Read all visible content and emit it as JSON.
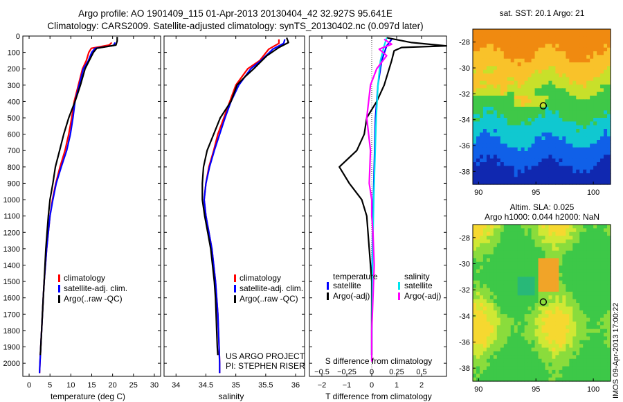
{
  "header": {
    "line1": "Argo profile: AO 1901409_115 01-Apr-2013 20130404_42 32.927S 95.641E",
    "line2": "Climatology: CARS2009. Satellite-adjusted climatology: synTS_20130402.nc (0.097d later)"
  },
  "credit": {
    "line1": "US ARGO PROJECT",
    "line2": "PI: STEPHEN RISER"
  },
  "watermark": "IMOS 09-Apr-2013 17:00:22",
  "colors": {
    "climatology": "#ff0000",
    "satellite": "#0000ff",
    "argo": "#000000",
    "salinity_sat": "#00e5ee",
    "salinity_argo": "#ff00ff"
  },
  "chart_data": [
    {
      "type": "line",
      "name": "temperature",
      "xlabel": "temperature (deg C)",
      "xlim": [
        -1.5,
        31.5
      ],
      "ylim": [
        0,
        2080
      ],
      "xticks": [
        0,
        5,
        10,
        15,
        20,
        25,
        30
      ],
      "yticks": [
        0,
        100,
        200,
        300,
        400,
        500,
        600,
        700,
        800,
        900,
        1000,
        1100,
        1200,
        1300,
        1400,
        1500,
        1600,
        1700,
        1800,
        1900,
        2000
      ],
      "legend": [
        "climatology",
        "satellite-adj. clim.",
        "Argo(..raw -QC)"
      ],
      "series": [
        {
          "name": "climatology",
          "color": "#ff0000",
          "points": [
            [
              19.8,
              40
            ],
            [
              19.2,
              55
            ],
            [
              14.9,
              75
            ],
            [
              14.3,
              100
            ],
            [
              13.7,
              150
            ],
            [
              12.8,
              200
            ],
            [
              11.8,
              300
            ],
            [
              10.8,
              400
            ],
            [
              10.2,
              500
            ],
            [
              9.5,
              600
            ],
            [
              8.6,
              700
            ],
            [
              7.4,
              800
            ],
            [
              6.4,
              900
            ],
            [
              5.6,
              1000
            ],
            [
              5.0,
              1100
            ],
            [
              4.6,
              1200
            ],
            [
              4.2,
              1300
            ],
            [
              3.9,
              1400
            ],
            [
              3.6,
              1500
            ],
            [
              3.4,
              1600
            ],
            [
              3.2,
              1700
            ],
            [
              3.0,
              1800
            ],
            [
              2.8,
              1900
            ],
            [
              2.6,
              2000
            ],
            [
              2.5,
              2060
            ]
          ]
        },
        {
          "name": "satellite-adj. clim.",
          "color": "#0000ff",
          "points": [
            [
              20.6,
              40
            ],
            [
              20.2,
              58
            ],
            [
              15.8,
              75
            ],
            [
              15.0,
              100
            ],
            [
              14.2,
              150
            ],
            [
              13.0,
              200
            ],
            [
              12.0,
              300
            ],
            [
              11.0,
              400
            ],
            [
              10.5,
              500
            ],
            [
              9.9,
              600
            ],
            [
              9.0,
              700
            ],
            [
              7.7,
              800
            ],
            [
              6.5,
              900
            ],
            [
              5.7,
              1000
            ],
            [
              5.0,
              1100
            ],
            [
              4.6,
              1200
            ],
            [
              4.2,
              1300
            ],
            [
              3.9,
              1400
            ],
            [
              3.6,
              1500
            ],
            [
              3.4,
              1600
            ],
            [
              3.2,
              1700
            ],
            [
              3.0,
              1800
            ],
            [
              2.8,
              1900
            ],
            [
              2.6,
              2000
            ],
            [
              2.5,
              2060
            ]
          ]
        },
        {
          "name": "Argo(..raw -QC)",
          "color": "#000000",
          "points": [
            [
              21.1,
              5
            ],
            [
              21.1,
              30
            ],
            [
              20.8,
              55
            ],
            [
              16.2,
              75
            ],
            [
              15.4,
              100
            ],
            [
              14.4,
              150
            ],
            [
              13.4,
              200
            ],
            [
              12.3,
              300
            ],
            [
              11.0,
              400
            ],
            [
              9.5,
              500
            ],
            [
              8.3,
              600
            ],
            [
              7.3,
              700
            ],
            [
              6.3,
              800
            ],
            [
              5.7,
              900
            ],
            [
              5.0,
              1000
            ],
            [
              4.6,
              1100
            ],
            [
              4.3,
              1200
            ],
            [
              4.0,
              1300
            ],
            [
              3.8,
              1400
            ],
            [
              3.6,
              1500
            ],
            [
              3.4,
              1600
            ],
            [
              3.2,
              1700
            ],
            [
              3.0,
              1800
            ],
            [
              2.8,
              1900
            ],
            [
              2.7,
              1950
            ]
          ]
        }
      ]
    },
    {
      "type": "line",
      "name": "salinity",
      "xlabel": "salinity",
      "xlim": [
        33.8,
        36.15
      ],
      "ylim": [
        0,
        2080
      ],
      "xticks": [
        34,
        34.5,
        35,
        35.5,
        36
      ],
      "legend": [
        "climatology",
        "satellite-adj. clim.",
        "Argo(..raw -QC)"
      ],
      "series": [
        {
          "name": "climatology",
          "color": "#ff0000",
          "points": [
            [
              35.72,
              20
            ],
            [
              35.72,
              45
            ],
            [
              35.55,
              80
            ],
            [
              35.4,
              150
            ],
            [
              35.2,
              200
            ],
            [
              35.0,
              300
            ],
            [
              34.9,
              400
            ],
            [
              34.8,
              500
            ],
            [
              34.7,
              600
            ],
            [
              34.63,
              700
            ],
            [
              34.55,
              800
            ],
            [
              34.5,
              900
            ],
            [
              34.47,
              1000
            ],
            [
              34.5,
              1100
            ],
            [
              34.55,
              1200
            ],
            [
              34.6,
              1300
            ],
            [
              34.63,
              1400
            ],
            [
              34.66,
              1500
            ],
            [
              34.68,
              1600
            ],
            [
              34.7,
              1700
            ],
            [
              34.71,
              1800
            ],
            [
              34.72,
              1900
            ],
            [
              34.73,
              2000
            ],
            [
              34.73,
              2060
            ]
          ]
        },
        {
          "name": "satellite-adj. clim.",
          "color": "#0000ff",
          "points": [
            [
              35.82,
              20
            ],
            [
              35.8,
              45
            ],
            [
              35.62,
              80
            ],
            [
              35.42,
              150
            ],
            [
              35.25,
              200
            ],
            [
              35.05,
              300
            ],
            [
              34.92,
              400
            ],
            [
              34.82,
              500
            ],
            [
              34.73,
              600
            ],
            [
              34.64,
              700
            ],
            [
              34.56,
              800
            ],
            [
              34.5,
              900
            ],
            [
              34.47,
              1000
            ],
            [
              34.5,
              1100
            ],
            [
              34.55,
              1200
            ],
            [
              34.6,
              1300
            ],
            [
              34.63,
              1400
            ],
            [
              34.66,
              1500
            ],
            [
              34.68,
              1600
            ],
            [
              34.7,
              1700
            ],
            [
              34.71,
              1800
            ],
            [
              34.72,
              1900
            ],
            [
              34.73,
              2000
            ],
            [
              34.73,
              2060
            ]
          ]
        },
        {
          "name": "Argo(..raw -QC)",
          "color": "#000000",
          "points": [
            [
              35.85,
              10
            ],
            [
              35.88,
              40
            ],
            [
              35.72,
              70
            ],
            [
              35.52,
              120
            ],
            [
              35.3,
              200
            ],
            [
              35.15,
              250
            ],
            [
              35.02,
              300
            ],
            [
              34.92,
              400
            ],
            [
              34.74,
              500
            ],
            [
              34.63,
              600
            ],
            [
              34.52,
              700
            ],
            [
              34.46,
              800
            ],
            [
              34.44,
              900
            ],
            [
              34.44,
              1000
            ],
            [
              34.48,
              1100
            ],
            [
              34.53,
              1200
            ],
            [
              34.58,
              1300
            ],
            [
              34.61,
              1400
            ],
            [
              34.64,
              1500
            ],
            [
              34.66,
              1600
            ],
            [
              34.67,
              1700
            ],
            [
              34.68,
              1800
            ],
            [
              34.69,
              1900
            ],
            [
              34.7,
              1950
            ]
          ]
        }
      ]
    },
    {
      "type": "line",
      "name": "difference",
      "xlabel": "T difference from climatology",
      "x2label": "S difference from climatology",
      "xlim": [
        -2.5,
        3.0
      ],
      "ylim": [
        0,
        2080
      ],
      "xticks": [
        -2,
        -1,
        0,
        1,
        2
      ],
      "xticklabels": [
        "−2",
        "−1",
        "0",
        "1",
        "2"
      ],
      "x2ticks": [
        "−0.5",
        "−0.25",
        "0",
        "0.25",
        "0.5"
      ],
      "legend_temperature_title": "temperature",
      "legend_salinity_title": "salinity",
      "legend": {
        "t_sat": "satellite",
        "t_argo": "Argo(-adj)",
        "s_sat": "satellite",
        "s_argo": "Argo(-adj)"
      },
      "series": [
        {
          "name": "temperature satellite",
          "color": "#0000ff",
          "points": [
            [
              0.8,
              20
            ],
            [
              0.6,
              60
            ],
            [
              0.4,
              150
            ],
            [
              0.25,
              300
            ],
            [
              0.15,
              500
            ],
            [
              0.1,
              800
            ],
            [
              0.05,
              1100
            ],
            [
              0.02,
              1400
            ],
            [
              0.0,
              1700
            ],
            [
              0.0,
              1950
            ]
          ]
        },
        {
          "name": "temperature Argo(-adj)",
          "color": "#000000",
          "points": [
            [
              0.6,
              10
            ],
            [
              1.6,
              40
            ],
            [
              3.0,
              60
            ],
            [
              1.2,
              70
            ],
            [
              0.9,
              90
            ],
            [
              0.8,
              150
            ],
            [
              0.5,
              300
            ],
            [
              0.2,
              400
            ],
            [
              -0.2,
              500
            ],
            [
              -0.3,
              600
            ],
            [
              -0.6,
              700
            ],
            [
              -1.3,
              800
            ],
            [
              -0.9,
              900
            ],
            [
              -0.4,
              1000
            ],
            [
              -0.2,
              1100
            ],
            [
              -0.1,
              1300
            ],
            [
              0.0,
              1500
            ],
            [
              0.0,
              1700
            ],
            [
              0.0,
              1950
            ]
          ]
        },
        {
          "name": "salinity satellite",
          "color": "#00e5ee",
          "points": [
            [
              0.6,
              10
            ],
            [
              0.5,
              60
            ],
            [
              0.35,
              150
            ],
            [
              0.25,
              300
            ],
            [
              0.18,
              500
            ],
            [
              0.12,
              800
            ],
            [
              0.08,
              1000
            ],
            [
              0.04,
              1300
            ],
            [
              0.02,
              1600
            ],
            [
              0.0,
              1900
            ],
            [
              0.0,
              1980
            ]
          ]
        },
        {
          "name": "salinity Argo(-adj)",
          "color": "#ff00ff",
          "points": [
            [
              0.5,
              20
            ],
            [
              0.8,
              50
            ],
            [
              0.3,
              80
            ],
            [
              0.6,
              120
            ],
            [
              0.2,
              200
            ],
            [
              -0.05,
              300
            ],
            [
              -0.2,
              500
            ],
            [
              -0.05,
              700
            ],
            [
              -0.1,
              900
            ],
            [
              0.0,
              1000
            ],
            [
              0.0,
              1100
            ],
            [
              0.05,
              1200
            ],
            [
              0.1,
              1400
            ],
            [
              0.05,
              1600
            ],
            [
              0.0,
              1800
            ],
            [
              0.0,
              1990
            ]
          ]
        }
      ]
    },
    {
      "type": "heatmap",
      "name": "sst-map",
      "title": "sat. SST: 20.1  Argo: 21",
      "xlim": [
        89.5,
        101.5
      ],
      "ylim": [
        -39,
        -27
      ],
      "xticks": [
        90,
        95,
        100
      ],
      "yticks": [
        -28,
        -30,
        -32,
        -34,
        -36,
        -38
      ],
      "marker": [
        95.641,
        -32.927
      ],
      "colors": [
        "#f08a10",
        "#f9c22a",
        "#c8e02a",
        "#3fc848",
        "#10c8d0",
        "#1060e8",
        "#1028b0"
      ]
    },
    {
      "type": "heatmap",
      "name": "sla-map",
      "title_line1": "Altim. SLA: 0.025",
      "title_line2": "Argo h1000: 0.044 h2000: NaN",
      "xlim": [
        89.5,
        101.5
      ],
      "ylim": [
        -39,
        -27
      ],
      "xticks": [
        90,
        95,
        100
      ],
      "yticks": [
        -28,
        -30,
        -32,
        -34,
        -36,
        -38
      ],
      "marker": [
        95.641,
        -32.927
      ],
      "colors": [
        "#3dc848",
        "#8adc3c",
        "#d0e834",
        "#f6d830",
        "#f1a428",
        "#28b878"
      ]
    }
  ]
}
